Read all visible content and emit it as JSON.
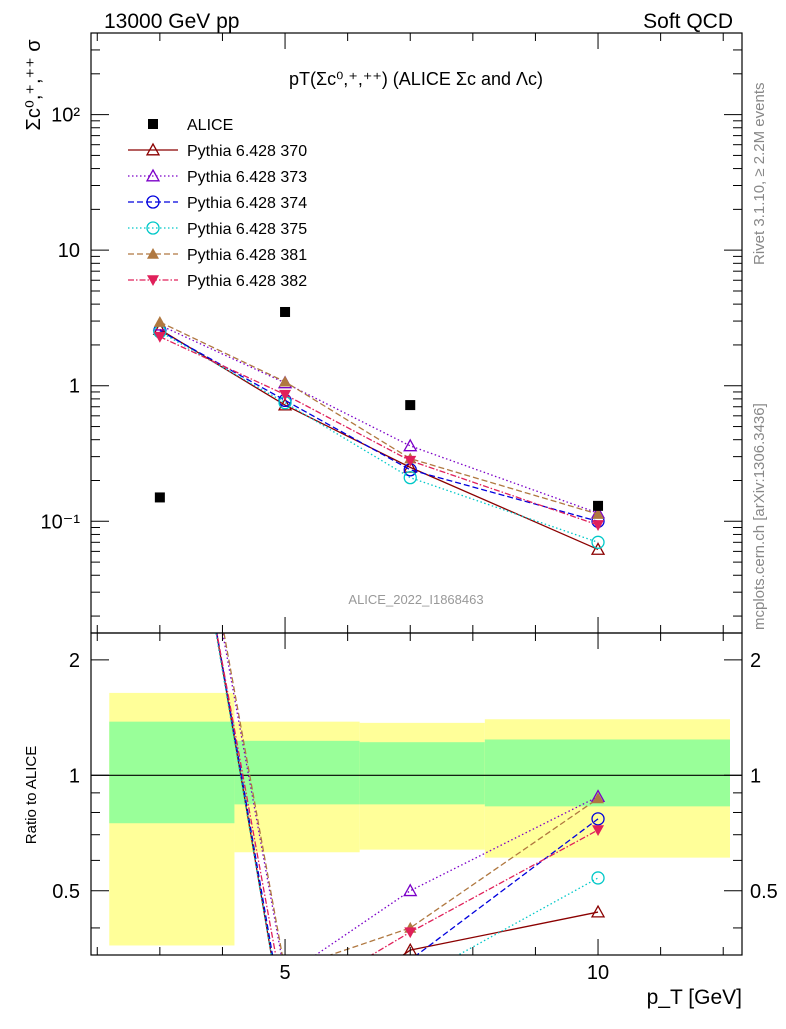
{
  "header": {
    "left": "13000 GeV pp",
    "right": "Soft QCD"
  },
  "side_texts": {
    "rivet": "Rivet 3.1.10, ≥ 2.2M events",
    "mcplots": "mcplots.cern.ch [arXiv:1306.3436]"
  },
  "watermark": "ALICE_2022_I1868463",
  "plot_title": "pT(Σc⁰,⁺,⁺⁺) (ALICE Σc and Λc)",
  "chart_data": {
    "type": "scatter",
    "xlabel": "p_T [GeV]",
    "ylabel_main": "Σc⁰,⁺,⁺⁺ σ",
    "ylabel_ratio": "Ratio to ALICE",
    "x_range": [
      1.9,
      12.3
    ],
    "y_range_main": [
      0.015,
      400
    ],
    "y_range_ratio": [
      0.34,
      2.35
    ],
    "y_scale_main": "log",
    "y_scale_ratio": "log",
    "x_ticks": [
      5,
      10
    ],
    "y_ticks_main": [
      "10⁻¹",
      "1",
      "10",
      "10²"
    ],
    "y_ticks_ratio": [
      0.5,
      1,
      2
    ],
    "legend_position": "top-left",
    "data": {
      "name": "ALICE",
      "x": [
        3,
        5,
        7,
        10
      ],
      "y": [
        0.15,
        3.5,
        0.72,
        0.13
      ],
      "bin_edges": [
        2,
        4,
        6,
        8,
        12
      ],
      "ratio_band_inner": [
        [
          0.75,
          1.38
        ],
        [
          0.84,
          1.23
        ],
        [
          0.84,
          1.22
        ],
        [
          0.83,
          1.24
        ]
      ],
      "ratio_band_outer": [
        [
          0.36,
          1.64
        ],
        [
          0.63,
          1.38
        ],
        [
          0.64,
          1.37
        ],
        [
          0.61,
          1.4
        ]
      ]
    },
    "series": [
      {
        "name": "Pythia 6.428 370",
        "color": "#8b0000",
        "marker": "triangle-open",
        "dash": "",
        "x": [
          3,
          5,
          7,
          10
        ],
        "y": [
          2.6,
          0.72,
          0.25,
          0.062
        ],
        "ratio": [
          17.3,
          0.21,
          0.35,
          0.44
        ]
      },
      {
        "name": "Pythia 6.428 373",
        "color": "#7b00c8",
        "marker": "triangle-open",
        "dash": "1.5,2.5",
        "x": [
          3,
          5,
          7,
          10
        ],
        "y": [
          2.8,
          1.05,
          0.36,
          0.115
        ],
        "ratio": [
          18.7,
          0.3,
          0.5,
          0.88
        ]
      },
      {
        "name": "Pythia 6.428 374",
        "color": "#0000dd",
        "marker": "circle-open",
        "dash": "6,3",
        "x": [
          3,
          5,
          7,
          10
        ],
        "y": [
          2.55,
          0.78,
          0.24,
          0.1
        ],
        "ratio": [
          17,
          0.22,
          0.33,
          0.77
        ]
      },
      {
        "name": "Pythia 6.428 375",
        "color": "#00c8c8",
        "marker": "circle-open",
        "dash": "1.5,2.5",
        "x": [
          3,
          5,
          7,
          10
        ],
        "y": [
          2.5,
          0.75,
          0.21,
          0.07
        ],
        "ratio": [
          16.7,
          0.21,
          0.29,
          0.54
        ]
      },
      {
        "name": "Pythia 6.428 381",
        "color": "#b07840",
        "marker": "triangle-filled",
        "dash": "6,3",
        "x": [
          3,
          5,
          7,
          10
        ],
        "y": [
          2.95,
          1.07,
          0.29,
          0.113
        ],
        "ratio": [
          19.7,
          0.31,
          0.4,
          0.87
        ]
      },
      {
        "name": "Pythia 6.428 382",
        "color": "#e0205a",
        "marker": "triangle-down-filled",
        "dash": "6,2,1.5,2",
        "x": [
          3,
          5,
          7,
          10
        ],
        "y": [
          2.3,
          0.86,
          0.28,
          0.094
        ],
        "ratio": [
          15.3,
          0.25,
          0.39,
          0.72
        ]
      }
    ]
  }
}
